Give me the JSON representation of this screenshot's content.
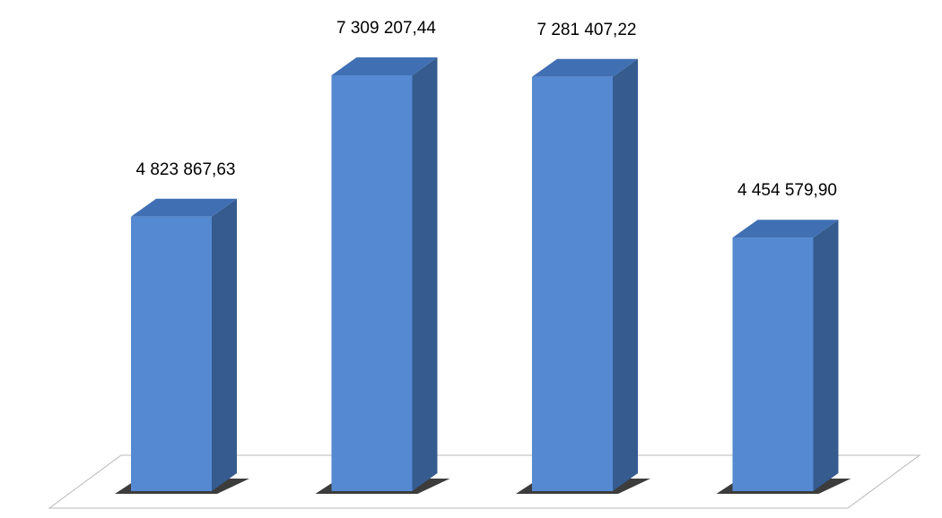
{
  "chart_data": {
    "type": "bar3d",
    "categories": [
      null,
      null,
      null,
      null
    ],
    "values": [
      4823867.63,
      7309207.44,
      7281407.22,
      4454579.9
    ],
    "value_labels": [
      "4 823 867,63",
      "7 309 207,44",
      "7 281 407,22",
      "4 454 579,90"
    ],
    "color": "#5589d2"
  }
}
